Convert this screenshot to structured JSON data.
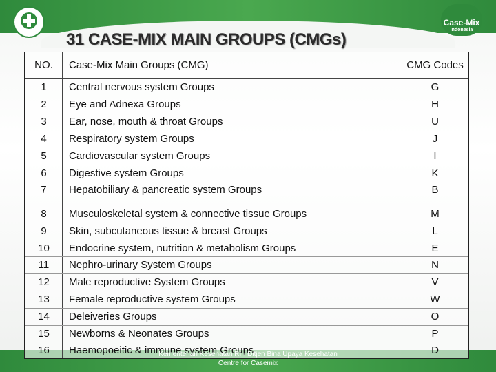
{
  "header": {
    "title": "31 CASE-MIX MAIN GROUPS (CMGs)"
  },
  "logo": {
    "name": "Case-Mix",
    "country": "Indonesia"
  },
  "table": {
    "columns": [
      "NO.",
      "Case-Mix Main Groups (CMG)",
      "CMG Codes"
    ],
    "groups": [
      [
        [
          "1",
          "Central nervous system Groups",
          "G"
        ],
        [
          "2",
          "Eye and Adnexa Groups",
          "H"
        ],
        [
          "3",
          "Ear, nose, mouth & throat Groups",
          "U"
        ],
        [
          "4",
          "Respiratory system Groups",
          "J"
        ],
        [
          "5",
          "Cardiovascular system Groups",
          "I"
        ],
        [
          "6",
          "Digestive system Groups",
          "K"
        ],
        [
          "7",
          "Hepatobiliary & pancreatic system Groups",
          "B"
        ]
      ],
      [
        [
          "8",
          "Musculoskeletal system & connective tissue Groups",
          "M"
        ],
        [
          "9",
          "Skin, subcutaneous tissue & breast Groups",
          "L"
        ],
        [
          "10",
          "Endocrine system, nutrition & metabolism Groups",
          "E"
        ],
        [
          "11",
          "Nephro-urinary System Groups",
          "N"
        ],
        [
          "12",
          "Male reproductive System Groups",
          "V"
        ],
        [
          "13",
          "Female reproductive system Groups",
          "W"
        ],
        [
          "14",
          "Deleiveries Groups",
          "O"
        ],
        [
          "15",
          "Newborns & Neonates Groups",
          "P"
        ],
        [
          "16",
          "Haemopoeitic & immune system Groups",
          "D"
        ]
      ]
    ]
  },
  "footer": {
    "lines": [
      "Kementerian Kesehatan RI - Ditjen Bina Upaya Kesehatan",
      "Centre for Casemix"
    ]
  }
}
